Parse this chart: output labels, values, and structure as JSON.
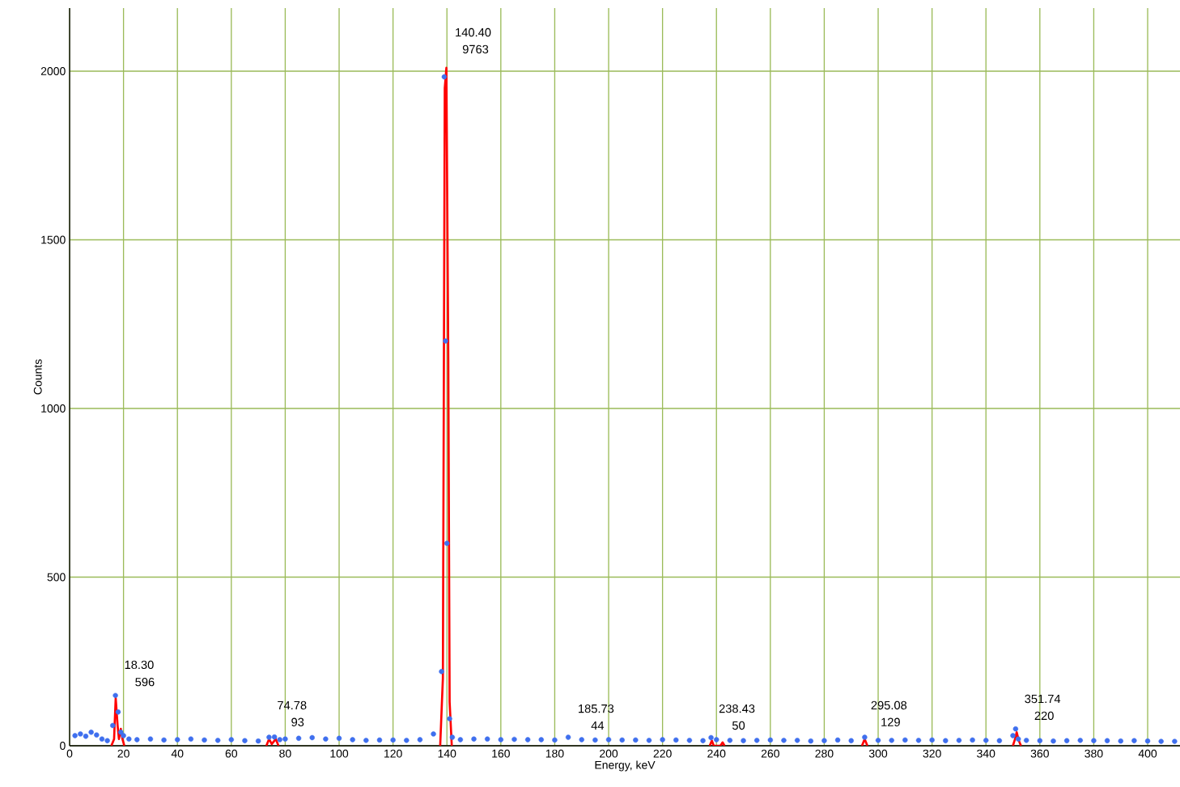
{
  "chart_data": {
    "type": "scatter",
    "xlabel": "Energy, keV",
    "ylabel": "Counts",
    "xlim": [
      0,
      412
    ],
    "ylim": [
      0,
      2187
    ],
    "xticks": [
      0,
      20,
      40,
      60,
      80,
      100,
      120,
      140,
      160,
      180,
      200,
      220,
      240,
      260,
      280,
      300,
      320,
      340,
      360,
      380,
      400
    ],
    "yticks": [
      0,
      500,
      1000,
      1500,
      2000
    ],
    "grid": true,
    "series": [
      {
        "color": "#3f6fee",
        "marker": "circle",
        "x": [
          2,
          4,
          6,
          8,
          10,
          12,
          14,
          16,
          17,
          18,
          19,
          20,
          22,
          25,
          30,
          35,
          40,
          45,
          50,
          55,
          60,
          65,
          70,
          74,
          76,
          78,
          80,
          85,
          90,
          95,
          100,
          105,
          110,
          115,
          120,
          125,
          130,
          135,
          138,
          139,
          139.5,
          140,
          141,
          142,
          145,
          150,
          155,
          160,
          165,
          170,
          175,
          180,
          185,
          190,
          195,
          200,
          205,
          210,
          215,
          220,
          225,
          230,
          235,
          238,
          240,
          245,
          250,
          255,
          260,
          265,
          270,
          275,
          280,
          285,
          290,
          295,
          300,
          305,
          310,
          315,
          320,
          325,
          330,
          335,
          340,
          345,
          350,
          351,
          352,
          355,
          360,
          365,
          370,
          375,
          380,
          385,
          390,
          395,
          400,
          405,
          410
        ],
        "values": [
          30,
          35,
          28,
          40,
          32,
          20,
          15,
          60,
          149,
          100,
          40,
          30,
          20,
          18,
          20,
          17,
          18,
          20,
          17,
          16,
          18,
          15,
          14,
          25,
          26,
          18,
          20,
          22,
          24,
          20,
          22,
          18,
          16,
          17,
          17,
          16,
          18,
          35,
          220,
          1983,
          1200,
          600,
          80,
          25,
          18,
          20,
          20,
          18,
          19,
          18,
          18,
          17,
          25,
          18,
          17,
          18,
          17,
          17,
          16,
          18,
          17,
          16,
          15,
          24,
          18,
          16,
          15,
          16,
          17,
          16,
          16,
          14,
          15,
          17,
          15,
          25,
          16,
          16,
          17,
          16,
          17,
          15,
          16,
          17,
          16,
          15,
          30,
          50,
          20,
          16,
          15,
          14,
          15,
          16,
          15,
          15,
          14,
          15,
          14,
          13,
          13
        ]
      },
      {
        "type": "line",
        "color": "#ff0000",
        "marker": "none",
        "x": [
          15.5,
          16.5,
          17.1,
          17.8,
          18.3,
          19,
          19.6,
          20.3,
          20.5,
          73,
          74,
          75,
          76.5,
          77.5,
          78,
          137.5,
          138.5,
          139.2,
          139.8,
          140.5,
          141,
          141.8,
          142,
          237.5,
          238.3,
          239,
          241.5,
          242.3,
          243,
          244,
          294,
          295,
          296,
          297,
          350,
          350.8,
          351.4,
          352.2,
          353
        ],
        "values": [
          0,
          20,
          141,
          60,
          20,
          50,
          20,
          0,
          null,
          0,
          20,
          5,
          20,
          0,
          null,
          0,
          200,
          1950,
          2010,
          1150,
          130,
          0,
          null,
          0,
          15,
          0,
          0,
          10,
          0,
          null,
          0,
          20,
          0,
          null,
          0,
          20,
          40,
          15,
          0
        ]
      }
    ],
    "annotations": [
      "140.40",
      "9763",
      "18.30",
      "596",
      "74.78",
      "93",
      "185.73",
      "44",
      "238.43",
      "50",
      "295.08",
      "129",
      "351.74",
      "220"
    ]
  }
}
